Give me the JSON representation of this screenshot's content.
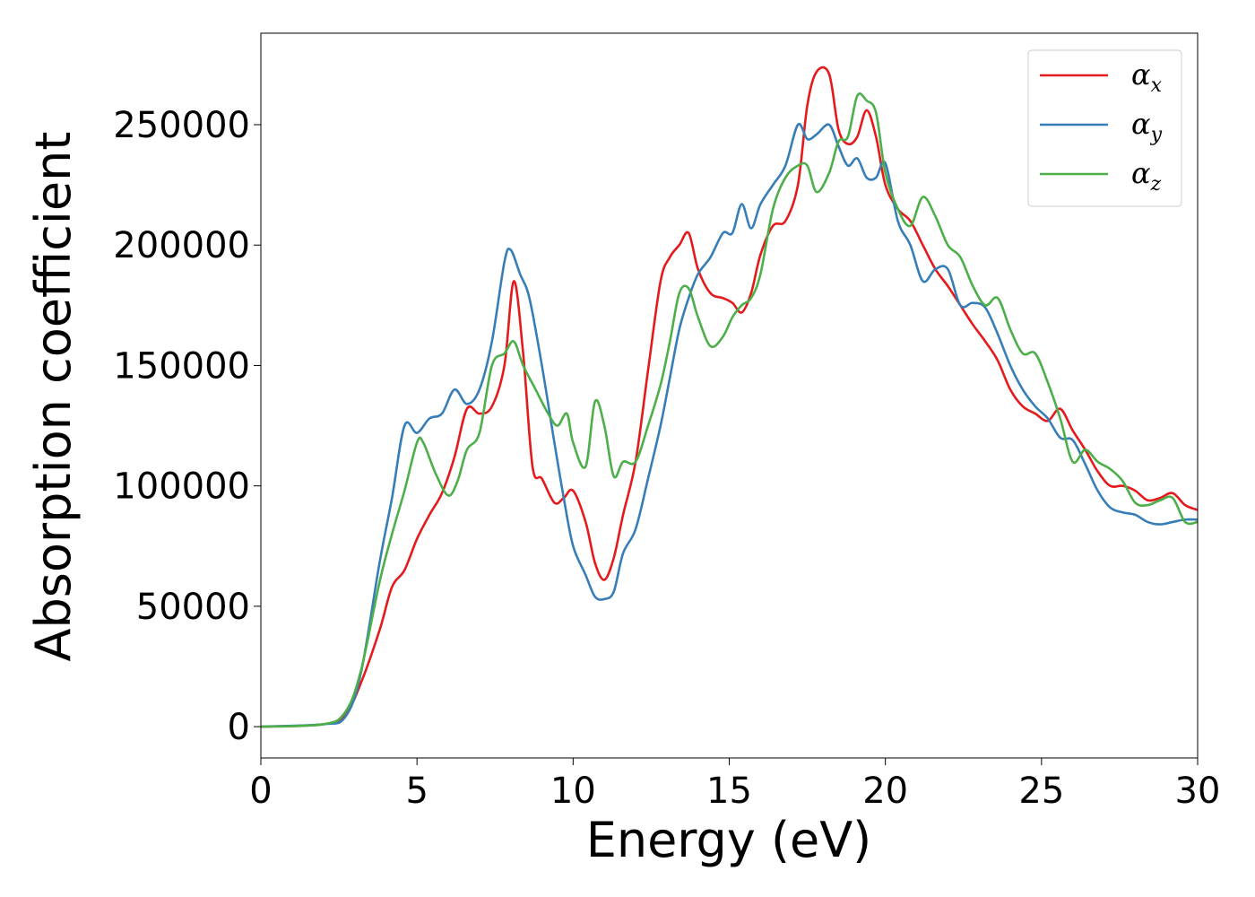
{
  "chart_data": {
    "type": "line",
    "title": "",
    "xlabel": "Energy (eV)",
    "ylabel": "Absorption coefficient",
    "xlim": [
      0,
      30
    ],
    "ylim": [
      -13000,
      288000
    ],
    "xticks": [
      0,
      5,
      10,
      15,
      20,
      25,
      30
    ],
    "xtick_labels": [
      "0",
      "5",
      "10",
      "15",
      "20",
      "25",
      "30"
    ],
    "yticks": [
      0,
      50000,
      100000,
      150000,
      200000,
      250000
    ],
    "ytick_labels": [
      "0",
      "50000",
      "100000",
      "150000",
      "200000",
      "250000"
    ],
    "grid": false,
    "legend_position": "top-right",
    "series": [
      {
        "name": "αx",
        "symbol": "α",
        "subscript": "x",
        "color": "#e41a1c",
        "x": [
          0,
          2,
          2.7,
          3.2,
          3.8,
          4.2,
          4.6,
          5.0,
          5.4,
          5.8,
          6.2,
          6.6,
          7.0,
          7.4,
          7.8,
          8.1,
          8.4,
          8.7,
          9.0,
          9.4,
          9.7,
          10.0,
          10.4,
          10.7,
          11.0,
          11.3,
          11.6,
          12.0,
          12.4,
          12.8,
          13.1,
          13.4,
          13.7,
          14.0,
          14.4,
          14.8,
          15.1,
          15.4,
          15.7,
          16.0,
          16.4,
          16.8,
          17.2,
          17.5,
          17.8,
          18.2,
          18.5,
          18.8,
          19.1,
          19.4,
          19.7,
          20.0,
          20.4,
          20.8,
          21.2,
          21.6,
          22.0,
          22.4,
          22.8,
          23.2,
          23.6,
          24.0,
          24.4,
          24.8,
          25.2,
          25.6,
          26.0,
          26.4,
          26.8,
          27.2,
          27.6,
          28.0,
          28.4,
          28.8,
          29.2,
          29.6,
          30.0
        ],
        "y": [
          0,
          1000,
          5000,
          18000,
          40000,
          58000,
          65000,
          78000,
          88000,
          97000,
          112000,
          132000,
          130000,
          133000,
          150000,
          185000,
          155000,
          108000,
          103000,
          93000,
          95000,
          98000,
          85000,
          68000,
          61000,
          70000,
          88000,
          110000,
          148000,
          185000,
          195000,
          200000,
          205000,
          190000,
          180000,
          178000,
          176000,
          172000,
          180000,
          196000,
          208000,
          210000,
          225000,
          258000,
          272000,
          271000,
          248000,
          242000,
          245000,
          256000,
          245000,
          225000,
          215000,
          210000,
          200000,
          190000,
          183000,
          175000,
          167000,
          160000,
          152000,
          140000,
          133000,
          130000,
          127000,
          132000,
          123000,
          115000,
          106000,
          100000,
          100000,
          98000,
          94000,
          95000,
          97000,
          92000,
          90000
        ]
      },
      {
        "name": "αy",
        "symbol": "α",
        "subscript": "y",
        "color": "#377eb8",
        "x": [
          0,
          2,
          2.7,
          3.2,
          3.8,
          4.2,
          4.6,
          5.0,
          5.4,
          5.8,
          6.2,
          6.6,
          7.0,
          7.4,
          7.8,
          8.0,
          8.3,
          8.6,
          9.0,
          9.4,
          9.7,
          10.0,
          10.4,
          10.7,
          11.0,
          11.3,
          11.6,
          12.0,
          12.4,
          12.8,
          13.1,
          13.4,
          13.7,
          14.0,
          14.4,
          14.8,
          15.1,
          15.4,
          15.7,
          16.0,
          16.4,
          16.8,
          17.2,
          17.5,
          17.8,
          18.2,
          18.5,
          18.8,
          19.1,
          19.4,
          19.7,
          20.0,
          20.4,
          20.8,
          21.2,
          21.6,
          22.0,
          22.4,
          22.8,
          23.2,
          23.6,
          24.0,
          24.4,
          24.8,
          25.2,
          25.6,
          26.0,
          26.4,
          26.8,
          27.2,
          27.6,
          28.0,
          28.4,
          28.8,
          29.2,
          29.6,
          30.0
        ],
        "y": [
          0,
          1000,
          4000,
          22000,
          68000,
          95000,
          125000,
          122000,
          128000,
          130000,
          140000,
          134000,
          140000,
          160000,
          193000,
          198000,
          188000,
          178000,
          150000,
          118000,
          95000,
          75000,
          63000,
          54000,
          53000,
          56000,
          72000,
          82000,
          103000,
          125000,
          145000,
          165000,
          178000,
          188000,
          195000,
          205000,
          205000,
          217000,
          207000,
          217000,
          225000,
          233000,
          250000,
          244000,
          246000,
          250000,
          241000,
          233000,
          236000,
          228000,
          228000,
          234000,
          210000,
          200000,
          185000,
          190000,
          190000,
          175000,
          176000,
          174000,
          163000,
          150000,
          140000,
          133000,
          128000,
          120000,
          119000,
          109000,
          98000,
          91000,
          89000,
          88000,
          85000,
          84000,
          85000,
          86000,
          86000
        ]
      },
      {
        "name": "αz",
        "symbol": "α",
        "subscript": "z",
        "color": "#4daf4a",
        "x": [
          0,
          2,
          2.7,
          3.2,
          3.8,
          4.2,
          4.6,
          5.0,
          5.2,
          5.6,
          6.0,
          6.3,
          6.6,
          7.0,
          7.4,
          7.8,
          8.1,
          8.4,
          8.8,
          9.2,
          9.5,
          9.8,
          10.0,
          10.4,
          10.7,
          11.0,
          11.3,
          11.6,
          12.0,
          12.4,
          12.8,
          13.1,
          13.4,
          13.7,
          14.0,
          14.4,
          14.8,
          15.1,
          15.4,
          15.7,
          16.0,
          16.4,
          16.8,
          17.2,
          17.5,
          17.8,
          18.2,
          18.5,
          18.8,
          19.1,
          19.4,
          19.7,
          20.0,
          20.4,
          20.8,
          21.2,
          21.6,
          22.0,
          22.4,
          22.8,
          23.2,
          23.6,
          24.0,
          24.4,
          24.8,
          25.2,
          25.6,
          26.0,
          26.4,
          26.8,
          27.2,
          27.6,
          28.0,
          28.4,
          28.8,
          29.2,
          29.6,
          30.0
        ],
        "y": [
          0,
          1000,
          6000,
          23000,
          60000,
          80000,
          98000,
          118000,
          118000,
          105000,
          96000,
          102000,
          115000,
          122000,
          150000,
          155000,
          160000,
          150000,
          140000,
          130000,
          125000,
          130000,
          118000,
          108000,
          135000,
          125000,
          104000,
          110000,
          110000,
          125000,
          142000,
          160000,
          180000,
          182000,
          170000,
          158000,
          162000,
          170000,
          175000,
          178000,
          188000,
          215000,
          228000,
          233000,
          233000,
          222000,
          230000,
          243000,
          245000,
          262000,
          260000,
          255000,
          230000,
          215000,
          208000,
          220000,
          212000,
          200000,
          195000,
          183000,
          175000,
          178000,
          165000,
          155000,
          155000,
          143000,
          128000,
          110000,
          115000,
          110000,
          107000,
          102000,
          93000,
          92000,
          94000,
          95000,
          85000,
          85000
        ]
      }
    ]
  }
}
